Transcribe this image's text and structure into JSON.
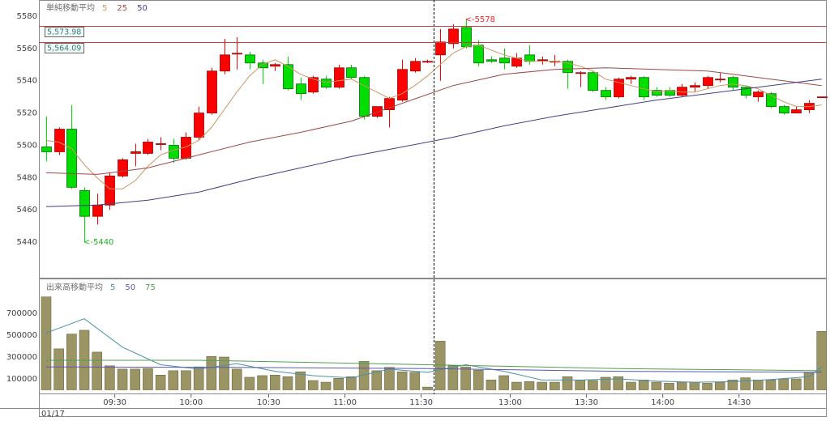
{
  "chart_data": [
    {
      "type": "candlestick",
      "title": "単純移動平均",
      "xlim": [
        -0.57,
        61.4
      ],
      "ylim": [
        5418,
        5590
      ],
      "yticks": [
        5440,
        5460,
        5480,
        5500,
        5520,
        5540,
        5560,
        5580
      ],
      "up_color": "#ff0000",
      "up_edge": "#a00000",
      "down_color": "#00dd00",
      "down_edge": "#007000",
      "open": [
        5499,
        5496,
        5510,
        5472,
        5456,
        5463,
        5481,
        5495,
        5495,
        5501,
        5500,
        5492,
        5505,
        5520,
        5546,
        5557,
        5556,
        5551,
        5549,
        5550,
        5538,
        5533,
        5541,
        5536,
        5548,
        5542,
        5518,
        5522,
        5528,
        5546,
        5552,
        5556,
        5563,
        5573,
        5562,
        5553,
        5554,
        5549,
        5556,
        5553,
        5552,
        5552,
        5545,
        5545,
        5534,
        5530,
        5541,
        5542,
        5534,
        5534,
        5531,
        5536,
        5537,
        5541,
        5542,
        5536,
        5530,
        5532,
        5524,
        5520,
        5522,
        5530
      ],
      "high": [
        5518,
        5511,
        5525,
        5474,
        5470,
        5483,
        5492,
        5501,
        5504,
        5505,
        5504,
        5508,
        5524,
        5548,
        5566,
        5567,
        5558,
        5553,
        5551,
        5555,
        5542,
        5543,
        5543,
        5550,
        5550,
        5543,
        5524,
        5530,
        5553,
        5554,
        5553,
        5572,
        5575,
        5578,
        5565,
        5555,
        5560,
        5557,
        5562,
        5555,
        5556,
        5553,
        5546,
        5546,
        5536,
        5542,
        5543,
        5543,
        5536,
        5536,
        5538,
        5539,
        5543,
        5545,
        5543,
        5537,
        5534,
        5533,
        5525,
        5524,
        5528,
        5530
      ],
      "low": [
        5490,
        5494,
        5473,
        5440,
        5451,
        5460,
        5480,
        5487,
        5494,
        5497,
        5489,
        5491,
        5503,
        5519,
        5544,
        5547,
        5547,
        5538,
        5546,
        5534,
        5528,
        5532,
        5535,
        5535,
        5541,
        5516,
        5517,
        5511,
        5527,
        5545,
        5551,
        5540,
        5560,
        5560,
        5549,
        5551,
        5547,
        5548,
        5550,
        5550,
        5549,
        5535,
        5536,
        5533,
        5528,
        5529,
        5538,
        5528,
        5530,
        5530,
        5530,
        5533,
        5535,
        5539,
        5534,
        5529,
        5527,
        5523,
        5519,
        5520,
        5520,
        5530
      ],
      "close": [
        5496,
        5510,
        5474,
        5456,
        5463,
        5481,
        5491,
        5496,
        5502,
        5501,
        5492,
        5505,
        5520,
        5546,
        5556,
        5557,
        5551,
        5548,
        5550,
        5535,
        5532,
        5542,
        5536,
        5548,
        5542,
        5518,
        5524,
        5529,
        5547,
        5552,
        5552,
        5564,
        5572,
        5561,
        5551,
        5552,
        5551,
        5554,
        5552,
        5553,
        5552,
        5545,
        5545,
        5534,
        5530,
        5541,
        5542,
        5530,
        5531,
        5531,
        5536,
        5537,
        5542,
        5541,
        5536,
        5531,
        5533,
        5524,
        5520,
        5522,
        5526,
        5530
      ],
      "series": [
        {
          "name": "5",
          "color": "#c89860",
          "values": [
            5503,
            5502,
            5498,
            5488,
            5480,
            5473,
            5473,
            5478,
            5487,
            5494,
            5497,
            5499,
            5503,
            5511,
            5522,
            5533,
            5543,
            5550,
            5553,
            5549,
            5544,
            5541,
            5539,
            5540,
            5541,
            5537,
            5533,
            5529,
            5532,
            5537,
            5543,
            5550,
            5557,
            5561,
            5562,
            5559,
            5556,
            5554,
            5552,
            5552,
            5552,
            5551,
            5549,
            5546,
            5541,
            5539,
            5537,
            5535,
            5533,
            5534,
            5533,
            5533,
            5535,
            5537,
            5538,
            5537,
            5535,
            5531,
            5527,
            5524,
            5524,
            5525
          ]
        },
        {
          "name": "25",
          "color": "#a04848",
          "x": [
            0,
            4,
            8,
            12,
            16,
            20,
            24,
            28,
            32,
            36,
            40,
            44,
            48,
            52,
            56,
            60,
            61
          ],
          "values": [
            5483,
            5482,
            5486,
            5494,
            5502,
            5508,
            5515,
            5526,
            5537,
            5544,
            5547,
            5548,
            5547,
            5546,
            5542,
            5538,
            5537
          ]
        },
        {
          "name": "50",
          "color": "#404088",
          "x": [
            0,
            4,
            8,
            12,
            16,
            20,
            24,
            28,
            32,
            36,
            40,
            44,
            48,
            52,
            56,
            60,
            61
          ],
          "values": [
            5462,
            5463,
            5466,
            5471,
            5479,
            5486,
            5493,
            5499,
            5505,
            5512,
            5518,
            5523,
            5528,
            5532,
            5536,
            5540,
            5541
          ]
        }
      ],
      "hlines": [
        {
          "value": 5573.98,
          "label": "5,573.98",
          "color": "#c04040"
        },
        {
          "value": 5564.09,
          "label": "5,564.09",
          "color": "#c04040"
        }
      ],
      "vlines": [
        30.5
      ],
      "annotations": [
        {
          "text": "<-5578",
          "x": 33,
          "value": 5578,
          "color": "#ff2020"
        },
        {
          "text": "<-5440",
          "x": 3,
          "value": 5440,
          "color": "#20b020"
        }
      ]
    },
    {
      "type": "bar",
      "title": "出来高移動平均",
      "xlim": [
        -0.57,
        61.4
      ],
      "ylim": [
        -40700,
        1011000
      ],
      "yticks": [
        100000,
        300000,
        500000,
        700000
      ],
      "color": "#9b9566",
      "edge": "#6b6540",
      "values": [
        850000,
        375000,
        510000,
        545000,
        345000,
        220000,
        190000,
        190000,
        195000,
        135000,
        175000,
        175000,
        210000,
        305000,
        300000,
        190000,
        115000,
        130000,
        135000,
        120000,
        165000,
        85000,
        70000,
        105000,
        120000,
        260000,
        175000,
        205000,
        165000,
        160000,
        25000,
        445000,
        220000,
        210000,
        180000,
        90000,
        130000,
        70000,
        75000,
        70000,
        70000,
        120000,
        90000,
        85000,
        115000,
        120000,
        70000,
        90000,
        70000,
        60000,
        70000,
        70000,
        60000,
        70000,
        90000,
        110000,
        90000,
        90000,
        100000,
        100000,
        160000,
        535000
      ],
      "series": [
        {
          "name": "5",
          "color": "#4a90a8",
          "x": [
            0,
            3,
            6,
            9,
            12,
            15,
            18,
            21,
            24,
            27,
            30,
            33,
            36,
            39,
            42,
            45,
            48,
            51,
            54,
            57,
            60,
            61
          ],
          "values": [
            520000,
            650000,
            390000,
            230000,
            190000,
            240000,
            170000,
            130000,
            110000,
            190000,
            160000,
            230000,
            170000,
            90000,
            90000,
            100000,
            80000,
            70000,
            75000,
            95000,
            120000,
            210000
          ]
        },
        {
          "name": "50",
          "color": "#5a5aa8",
          "x": [
            0,
            15,
            30,
            45,
            61
          ],
          "values": [
            210000,
            205000,
            195000,
            170000,
            160000
          ]
        },
        {
          "name": "75",
          "color": "#50a050",
          "x": [
            0,
            12,
            30,
            45,
            61
          ],
          "values": [
            270000,
            270000,
            230000,
            195000,
            175000
          ]
        }
      ],
      "xticks": [
        {
          "value": 5.4,
          "label": "09:30"
        },
        {
          "value": 11.4,
          "label": "10:00"
        },
        {
          "value": 17.5,
          "label": "10:30"
        },
        {
          "value": 23.5,
          "label": "11:00"
        },
        {
          "value": 29.5,
          "label": "11:30"
        },
        {
          "value": 36.5,
          "label": "13:00"
        },
        {
          "value": 42.5,
          "label": "13:30"
        },
        {
          "value": 48.5,
          "label": "14:00"
        },
        {
          "value": 54.5,
          "label": "14:30"
        }
      ],
      "vlines": [
        30.5
      ],
      "date_label": "01/17"
    }
  ]
}
